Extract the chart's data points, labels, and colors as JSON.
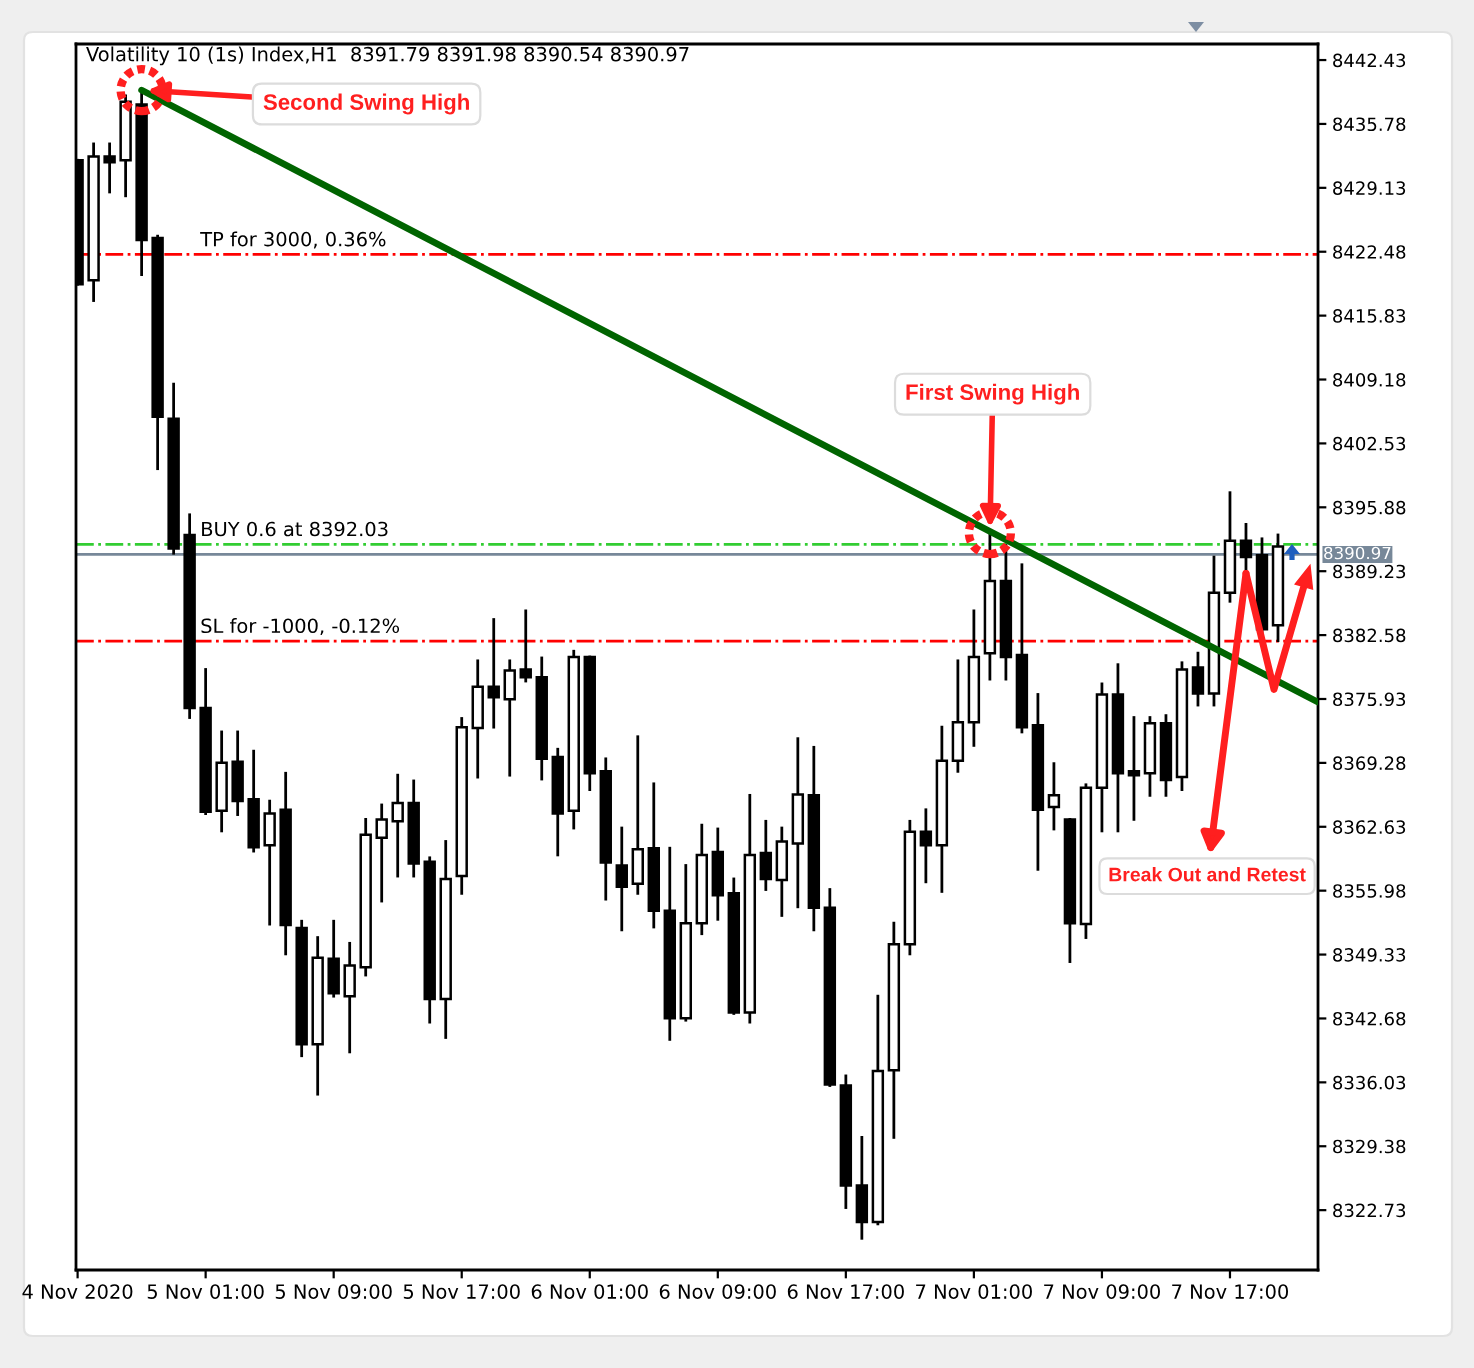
{
  "chart_data": {
    "type": "candlestick",
    "title": "Volatility 10 (1s) Index,H1  8391.79 8391.98 8390.54 8390.97",
    "color": "#000000",
    "x": [
      "2020-11-04T17:00",
      "2020-11-04T18:00",
      "2020-11-04T19:00",
      "2020-11-04T20:00",
      "2020-11-04T21:00",
      "2020-11-04T22:00",
      "2020-11-04T23:00",
      "2020-11-05T00:00",
      "2020-11-05T01:00",
      "2020-11-05T02:00",
      "2020-11-05T03:00",
      "2020-11-05T04:00",
      "2020-11-05T05:00",
      "2020-11-05T06:00",
      "2020-11-05T07:00",
      "2020-11-05T08:00",
      "2020-11-05T09:00",
      "2020-11-05T10:00",
      "2020-11-05T11:00",
      "2020-11-05T12:00",
      "2020-11-05T13:00",
      "2020-11-05T14:00",
      "2020-11-05T15:00",
      "2020-11-05T16:00",
      "2020-11-05T17:00",
      "2020-11-05T18:00",
      "2020-11-05T19:00",
      "2020-11-05T20:00",
      "2020-11-05T21:00",
      "2020-11-05T22:00",
      "2020-11-05T23:00",
      "2020-11-06T00:00",
      "2020-11-06T01:00",
      "2020-11-06T02:00",
      "2020-11-06T03:00",
      "2020-11-06T04:00",
      "2020-11-06T05:00",
      "2020-11-06T06:00",
      "2020-11-06T07:00",
      "2020-11-06T08:00",
      "2020-11-06T09:00",
      "2020-11-06T10:00",
      "2020-11-06T11:00",
      "2020-11-06T12:00",
      "2020-11-06T13:00",
      "2020-11-06T14:00",
      "2020-11-06T15:00",
      "2020-11-06T16:00",
      "2020-11-06T17:00",
      "2020-11-06T18:00",
      "2020-11-06T19:00",
      "2020-11-06T20:00",
      "2020-11-06T21:00",
      "2020-11-06T22:00",
      "2020-11-06T23:00",
      "2020-11-07T00:00",
      "2020-11-07T01:00",
      "2020-11-07T02:00",
      "2020-11-07T03:00",
      "2020-11-07T04:00",
      "2020-11-07T05:00",
      "2020-11-07T06:00",
      "2020-11-07T07:00",
      "2020-11-07T08:00",
      "2020-11-07T09:00",
      "2020-11-07T10:00",
      "2020-11-07T11:00",
      "2020-11-07T12:00",
      "2020-11-07T13:00",
      "2020-11-07T14:00",
      "2020-11-07T15:00",
      "2020-11-07T16:00",
      "2020-11-07T17:00",
      "2020-11-07T18:00",
      "2020-11-07T19:00",
      "2020-11-07T20:00"
    ],
    "ohlc": [
      [
        8432.0,
        8432.0,
        8419.1,
        8419.1
      ],
      [
        8419.5,
        8433.7,
        8417.4,
        8432.4
      ],
      [
        8432.4,
        8433.7,
        8428.7,
        8431.8
      ],
      [
        8432.0,
        8438.7,
        8428.3,
        8438.1
      ],
      [
        8437.8,
        8439.3,
        8420.1,
        8423.7
      ],
      [
        8423.9,
        8424.1,
        8399.9,
        8405.3
      ],
      [
        8405.1,
        8408.7,
        8391.1,
        8391.6
      ],
      [
        8393.0,
        8395.1,
        8374.0,
        8375.0
      ],
      [
        8375.0,
        8379.0,
        8364.0,
        8364.2
      ],
      [
        8364.3,
        8372.5,
        8362.2,
        8369.3
      ],
      [
        8369.4,
        8372.5,
        8363.9,
        8365.3
      ],
      [
        8365.5,
        8370.5,
        8360.1,
        8360.5
      ],
      [
        8360.7,
        8365.3,
        8352.5,
        8364.0
      ],
      [
        8364.4,
        8368.2,
        8349.4,
        8352.4
      ],
      [
        8352.1,
        8352.8,
        8338.8,
        8340.0
      ],
      [
        8340.0,
        8351.1,
        8334.8,
        8349.0
      ],
      [
        8348.9,
        8352.8,
        8345.0,
        8345.3
      ],
      [
        8345.0,
        8350.5,
        8339.2,
        8348.2
      ],
      [
        8348.0,
        8363.4,
        8347.2,
        8361.8
      ],
      [
        8361.5,
        8364.9,
        8354.9,
        8363.4
      ],
      [
        8363.2,
        8368.0,
        8357.5,
        8365.1
      ],
      [
        8365.1,
        8367.4,
        8357.5,
        8358.8
      ],
      [
        8359.0,
        8359.4,
        8342.3,
        8344.7
      ],
      [
        8344.7,
        8361.1,
        8340.7,
        8357.2
      ],
      [
        8357.5,
        8373.9,
        8355.7,
        8373.0
      ],
      [
        8372.9,
        8379.9,
        8367.8,
        8377.2
      ],
      [
        8377.2,
        8384.2,
        8373.0,
        8376.1
      ],
      [
        8375.9,
        8379.9,
        8368.0,
        8378.9
      ],
      [
        8379.0,
        8385.1,
        8377.8,
        8378.2
      ],
      [
        8378.2,
        8380.2,
        8367.6,
        8369.7
      ],
      [
        8369.9,
        8370.7,
        8359.7,
        8364.0
      ],
      [
        8364.3,
        8380.9,
        8362.5,
        8380.3
      ],
      [
        8380.3,
        8380.3,
        8366.5,
        8368.2
      ],
      [
        8368.4,
        8369.7,
        8355.1,
        8358.9
      ],
      [
        8358.6,
        8362.5,
        8351.9,
        8356.4
      ],
      [
        8356.7,
        8372.0,
        8355.7,
        8360.3
      ],
      [
        8360.4,
        8367.1,
        8352.2,
        8353.9
      ],
      [
        8353.9,
        8360.4,
        8340.5,
        8342.7
      ],
      [
        8342.7,
        8358.6,
        8342.5,
        8352.6
      ],
      [
        8352.6,
        8362.8,
        8351.5,
        8359.7
      ],
      [
        8360.0,
        8362.4,
        8353.0,
        8355.5
      ],
      [
        8355.7,
        8357.2,
        8343.2,
        8343.3
      ],
      [
        8343.3,
        8365.9,
        8342.3,
        8359.7
      ],
      [
        8359.9,
        8363.2,
        8356.1,
        8357.2
      ],
      [
        8357.1,
        8362.5,
        8353.4,
        8361.1
      ],
      [
        8360.9,
        8371.8,
        8354.3,
        8366.0
      ],
      [
        8365.9,
        8370.9,
        8351.9,
        8354.2
      ],
      [
        8354.2,
        8356.1,
        8335.7,
        8335.8
      ],
      [
        8335.7,
        8336.7,
        8323.0,
        8325.3
      ],
      [
        8325.3,
        8330.3,
        8319.8,
        8321.5
      ],
      [
        8321.5,
        8345.0,
        8321.3,
        8337.2
      ],
      [
        8337.3,
        8352.6,
        8330.3,
        8350.4
      ],
      [
        8350.4,
        8363.2,
        8349.4,
        8362.1
      ],
      [
        8362.1,
        8364.4,
        8356.9,
        8360.7
      ],
      [
        8360.7,
        8373.0,
        8355.9,
        8369.5
      ],
      [
        8369.5,
        8379.9,
        8368.4,
        8373.5
      ],
      [
        8373.5,
        8385.1,
        8371.1,
        8380.3
      ],
      [
        8380.7,
        8393.2,
        8378.0,
        8388.2
      ],
      [
        8388.2,
        8391.9,
        8378.0,
        8380.3
      ],
      [
        8380.5,
        8389.9,
        8372.5,
        8373.0
      ],
      [
        8373.2,
        8376.4,
        8358.2,
        8364.4
      ],
      [
        8364.7,
        8369.2,
        8362.4,
        8365.9
      ],
      [
        8363.4,
        8363.4,
        8348.6,
        8352.6
      ],
      [
        8352.5,
        8367.0,
        8351.1,
        8366.7
      ],
      [
        8366.7,
        8377.5,
        8362.2,
        8376.4
      ],
      [
        8376.4,
        8379.5,
        8362.2,
        8368.2
      ],
      [
        8368.4,
        8374.0,
        8363.4,
        8368.0
      ],
      [
        8368.2,
        8374.0,
        8365.9,
        8373.4
      ],
      [
        8373.4,
        8374.2,
        8365.9,
        8367.5
      ],
      [
        8367.8,
        8379.7,
        8366.5,
        8379.0
      ],
      [
        8379.2,
        8380.7,
        8375.3,
        8376.5
      ],
      [
        8376.5,
        8390.7,
        8375.3,
        8387.0
      ],
      [
        8387.0,
        8397.4,
        8386.1,
        8392.4
      ],
      [
        8392.4,
        8394.1,
        8389.1,
        8390.7
      ],
      [
        8390.9,
        8392.6,
        8382.4,
        8383.2
      ],
      [
        8383.6,
        8393.0,
        8382.0,
        8391.8
      ]
    ],
    "series": [
      {
        "type": "line",
        "color": "#006400",
        "x": [
          "2020-11-04T21:00",
          "2020-11-07T22:30"
        ],
        "values": [
          8439.3,
          8375.6
        ]
      }
    ],
    "xlim": [
      "2020-11-04T16:54",
      "2020-11-07T22:30"
    ],
    "ylim": [
      8316.5,
      8444.1
    ],
    "xticks": [
      {
        "value": "2020-11-04T17:00",
        "label": "4 Nov 2020"
      },
      {
        "value": "2020-11-05T01:00",
        "label": "5 Nov 01:00"
      },
      {
        "value": "2020-11-05T09:00",
        "label": "5 Nov 09:00"
      },
      {
        "value": "2020-11-05T17:00",
        "label": "5 Nov 17:00"
      },
      {
        "value": "2020-11-06T01:00",
        "label": "6 Nov 01:00"
      },
      {
        "value": "2020-11-06T09:00",
        "label": "6 Nov 09:00"
      },
      {
        "value": "2020-11-06T17:00",
        "label": "6 Nov 17:00"
      },
      {
        "value": "2020-11-07T01:00",
        "label": "7 Nov 01:00"
      },
      {
        "value": "2020-11-07T09:00",
        "label": "7 Nov 09:00"
      },
      {
        "value": "2020-11-07T17:00",
        "label": "7 Nov 17:00"
      }
    ],
    "yticks": [
      8322.73,
      8329.38,
      8336.03,
      8342.68,
      8349.33,
      8355.98,
      8362.63,
      8369.28,
      8375.93,
      8382.58,
      8389.23,
      8395.88,
      8402.53,
      8409.18,
      8415.83,
      8422.48,
      8429.13,
      8435.78,
      8442.43
    ],
    "ref_lines": [
      {
        "axis": "y",
        "value": 8422.2,
        "label": "TP for 3000, 0.36%",
        "color": "#ff0000",
        "line_style": "dashdot"
      },
      {
        "axis": "y",
        "value": 8392.03,
        "label": "BUY 0.6 at 8392.03",
        "color": "#32cd32",
        "line_style": "dashdot"
      },
      {
        "axis": "y",
        "value": 8390.97,
        "label": "8390.97",
        "color": "#778899",
        "line_style": "solid"
      },
      {
        "axis": "y",
        "value": 8381.96,
        "label": "SL for -1000, -0.12%",
        "color": "#ff0000",
        "line_style": "dashdot"
      }
    ],
    "annotations": [
      {
        "text": "Second Swing High",
        "x": "2020-11-04T21:00",
        "y": 8439.3
      },
      {
        "text": "First Swing High",
        "x": "2020-11-07T02:00",
        "y": 8393.2
      },
      {
        "text": "Break Out and Retest",
        "x": "2020-11-07T18:00",
        "y": 8389.0
      }
    ]
  }
}
